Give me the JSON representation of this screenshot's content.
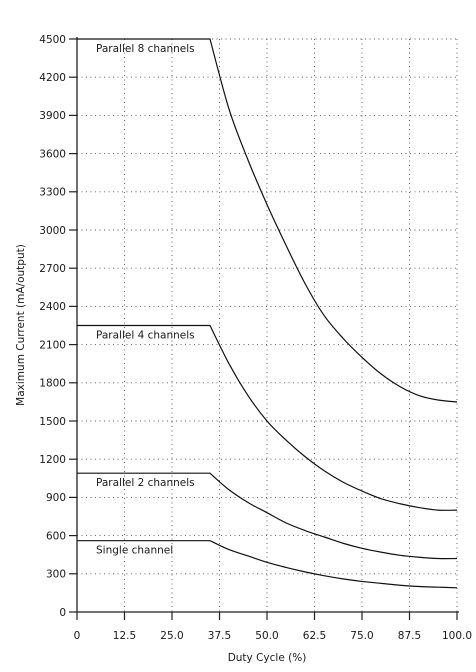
{
  "chart_data": {
    "type": "line",
    "title": "",
    "xlabel": "Duty Cycle (%)",
    "ylabel": "Maximum Current (mA/output)",
    "xlim": [
      0,
      100
    ],
    "ylim": [
      0,
      4500
    ],
    "xticks": [
      0,
      12.5,
      25.0,
      37.5,
      50.0,
      62.5,
      75.0,
      87.5,
      100.0
    ],
    "xtick_labels": [
      "0",
      "12.5",
      "25.0",
      "37.5",
      "50.0",
      "62.5",
      "75.0",
      "87.5",
      "100.0"
    ],
    "yticks": [
      0,
      300,
      600,
      900,
      1200,
      1500,
      1800,
      2100,
      2400,
      2700,
      3000,
      3300,
      3600,
      3900,
      4200,
      4500
    ],
    "ytick_labels": [
      "0",
      "300",
      "600",
      "900",
      "1200",
      "1500",
      "1800",
      "2100",
      "2400",
      "2700",
      "3000",
      "3300",
      "3600",
      "3900",
      "4200",
      "4500"
    ],
    "grid": true,
    "legend": "none",
    "series": [
      {
        "name": "Parallel 8 channels",
        "x": [
          0,
          35,
          40,
          45,
          50,
          55,
          60,
          65,
          70,
          75,
          80,
          85,
          90,
          95,
          100
        ],
        "y": [
          4500,
          4500,
          3950,
          3550,
          3200,
          2880,
          2580,
          2330,
          2150,
          2000,
          1870,
          1770,
          1700,
          1665,
          1650
        ]
      },
      {
        "name": "Parallel 4 channels",
        "x": [
          0,
          35,
          40,
          45,
          50,
          55,
          60,
          65,
          70,
          75,
          80,
          85,
          90,
          95,
          100
        ],
        "y": [
          2250,
          2250,
          1950,
          1700,
          1500,
          1350,
          1220,
          1110,
          1020,
          950,
          890,
          850,
          820,
          800,
          800
        ]
      },
      {
        "name": "Parallel 2 channels",
        "x": [
          0,
          35,
          40,
          45,
          50,
          55,
          60,
          65,
          70,
          75,
          80,
          85,
          90,
          95,
          100
        ],
        "y": [
          1090,
          1090,
          960,
          860,
          780,
          700,
          640,
          590,
          540,
          500,
          470,
          445,
          430,
          420,
          420
        ]
      },
      {
        "name": "Single channel",
        "x": [
          0,
          35,
          40,
          45,
          50,
          55,
          60,
          65,
          70,
          75,
          80,
          85,
          90,
          95,
          100
        ],
        "y": [
          560,
          560,
          490,
          440,
          390,
          350,
          315,
          285,
          260,
          240,
          225,
          210,
          200,
          195,
          190
        ]
      }
    ]
  }
}
